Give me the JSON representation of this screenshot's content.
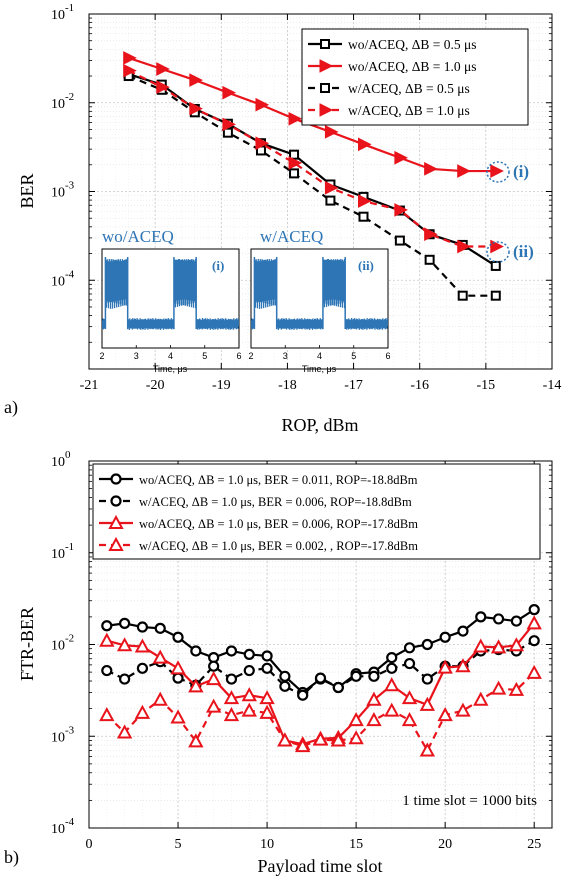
{
  "colors": {
    "black": "#000000",
    "red": "#e8131b",
    "blue": "#2e75b6"
  },
  "chart_data": [
    {
      "type": "line",
      "panel_label": "a)",
      "xlabel": "ROP, dBm",
      "ylabel": "BER",
      "xlim": [
        -21,
        -14
      ],
      "ylim": [
        1e-05,
        0.1
      ],
      "yscale": "log",
      "grid": true,
      "xticks": [
        "-21",
        "-20",
        "-19",
        "-18",
        "-17",
        "-16",
        "-15",
        "-14"
      ],
      "yticks": [
        {
          "base": "10",
          "exp": "-1"
        },
        {
          "base": "10",
          "exp": "-2"
        },
        {
          "base": "10",
          "exp": "-3"
        },
        {
          "base": "10",
          "exp": "-4"
        }
      ],
      "legend_position": "top-right",
      "series": [
        {
          "name": "wo/ACEQ, ΔB = 0.5 μs",
          "color": "#000000",
          "dash": false,
          "marker": "square",
          "x": [
            -20.4,
            -19.9,
            -19.4,
            -18.9,
            -18.4,
            -17.9,
            -17.35,
            -16.85,
            -16.3,
            -15.85,
            -15.35,
            -14.85
          ],
          "y": [
            0.021,
            0.016,
            0.0085,
            0.0058,
            0.0035,
            0.0026,
            0.0012,
            0.00087,
            0.00061,
            0.00033,
            0.00025,
            0.000145
          ]
        },
        {
          "name": "wo/ACEQ, ΔB = 1.0 μs",
          "color": "#e8131b",
          "dash": false,
          "marker": "triangle-right",
          "x": [
            -20.4,
            -19.9,
            -19.4,
            -18.9,
            -18.4,
            -17.9,
            -17.35,
            -16.85,
            -16.3,
            -15.85,
            -15.35,
            -14.85
          ],
          "y": [
            0.032,
            0.024,
            0.018,
            0.013,
            0.0095,
            0.0066,
            0.0047,
            0.0034,
            0.0024,
            0.0018,
            0.0017,
            0.0017
          ]
        },
        {
          "name": "w/ACEQ, ΔB = 0.5 μs",
          "color": "#000000",
          "dash": true,
          "marker": "square",
          "x": [
            -20.4,
            -19.9,
            -19.4,
            -18.9,
            -18.4,
            -17.9,
            -17.35,
            -16.85,
            -16.3,
            -15.85,
            -15.35,
            -14.85
          ],
          "y": [
            0.02,
            0.014,
            0.0078,
            0.0046,
            0.0029,
            0.0016,
            0.00079,
            0.00052,
            0.00028,
            0.00017,
            6.7e-05,
            6.7e-05
          ]
        },
        {
          "name": "w/ACEQ, ΔB = 1.0 μs",
          "color": "#e8131b",
          "dash": true,
          "marker": "triangle-right",
          "x": [
            -20.4,
            -19.9,
            -19.4,
            -18.9,
            -18.4,
            -17.9,
            -17.35,
            -16.85,
            -16.3,
            -15.85,
            -15.35,
            -14.85
          ],
          "y": [
            0.023,
            0.015,
            0.0086,
            0.0057,
            0.0035,
            0.0021,
            0.0011,
            0.00078,
            0.00062,
            0.00033,
            0.00024,
            0.00024
          ]
        }
      ],
      "annotations": [
        "(i)",
        "(ii)"
      ],
      "insets": [
        {
          "title": "wo/ACEQ",
          "marker": "(i)",
          "xlabel": "Time, μs",
          "xticks": [
            "2",
            "3",
            "4",
            "5",
            "6"
          ]
        },
        {
          "title": "w/ACEQ",
          "marker": "(ii)",
          "xlabel": "Time, μs",
          "xticks": [
            "2",
            "3",
            "4",
            "5",
            "6"
          ]
        }
      ]
    },
    {
      "type": "line",
      "panel_label": "b)",
      "xlabel": "Payload time slot",
      "ylabel": "FTR-BER",
      "xlim": [
        0,
        26
      ],
      "ylim": [
        0.0001,
        1
      ],
      "yscale": "log",
      "grid": true,
      "xticks": [
        "0",
        "5",
        "10",
        "15",
        "20",
        "25"
      ],
      "yticks": [
        {
          "base": "10",
          "exp": "0"
        },
        {
          "base": "10",
          "exp": "-1"
        },
        {
          "base": "10",
          "exp": "-2"
        },
        {
          "base": "10",
          "exp": "-3"
        },
        {
          "base": "10",
          "exp": "-4"
        }
      ],
      "legend_position": "top-left",
      "annotation": "1 time slot = 1000 bits",
      "x": [
        1,
        2,
        3,
        4,
        5,
        6,
        7,
        8,
        9,
        10,
        11,
        12,
        13,
        14,
        15,
        16,
        17,
        18,
        19,
        20,
        21,
        22,
        23,
        24,
        25
      ],
      "series": [
        {
          "name": "wo/ACEQ, ΔB = 1.0 μs, BER = 0.011, ROP=-18.8dBm",
          "color": "#000000",
          "dash": false,
          "marker": "circle",
          "y": [
            0.016,
            0.017,
            0.0155,
            0.015,
            0.012,
            0.0085,
            0.0072,
            0.0085,
            0.0078,
            0.0075,
            0.0045,
            0.003,
            0.0042,
            0.0034,
            0.0048,
            0.005,
            0.0072,
            0.0092,
            0.01,
            0.012,
            0.014,
            0.02,
            0.019,
            0.018,
            0.024
          ]
        },
        {
          "name": "w/ACEQ, ΔB = 1.0 μs, BER = 0.006, ROP=-18.8dBm",
          "color": "#000000",
          "dash": true,
          "marker": "circle",
          "y": [
            0.0052,
            0.0042,
            0.0055,
            0.0065,
            0.0043,
            0.0036,
            0.0058,
            0.0042,
            0.0052,
            0.0055,
            0.0035,
            0.0028,
            0.0043,
            0.0034,
            0.0045,
            0.0045,
            0.0055,
            0.0062,
            0.0042,
            0.0058,
            0.0058,
            0.0085,
            0.0088,
            0.0085,
            0.011
          ]
        },
        {
          "name": "wo/ACEQ, ΔB = 1.0 μs, BER = 0.006, ROP=-17.8dBm",
          "color": "#e8131b",
          "dash": false,
          "marker": "triangle-up",
          "y": [
            0.011,
            0.0098,
            0.0095,
            0.0072,
            0.0055,
            0.0035,
            0.0042,
            0.0026,
            0.0028,
            0.0026,
            0.0009,
            0.00082,
            0.00094,
            0.00096,
            0.0015,
            0.0025,
            0.0036,
            0.0026,
            0.0022,
            0.0056,
            0.0058,
            0.0095,
            0.0093,
            0.0098,
            0.017
          ]
        },
        {
          "name": "w/ACEQ, ΔB = 1.0 μs, BER = 0.002, , ROP=-17.8dBm",
          "color": "#e8131b",
          "dash": true,
          "marker": "triangle-up",
          "y": [
            0.0017,
            0.0011,
            0.0018,
            0.0025,
            0.0016,
            0.00088,
            0.0021,
            0.0017,
            0.0019,
            0.0018,
            0.0009,
            0.00078,
            0.00092,
            0.0009,
            0.00095,
            0.0015,
            0.0019,
            0.0015,
            0.0007,
            0.0017,
            0.0019,
            0.0025,
            0.0033,
            0.0032,
            0.0049
          ]
        }
      ]
    }
  ]
}
